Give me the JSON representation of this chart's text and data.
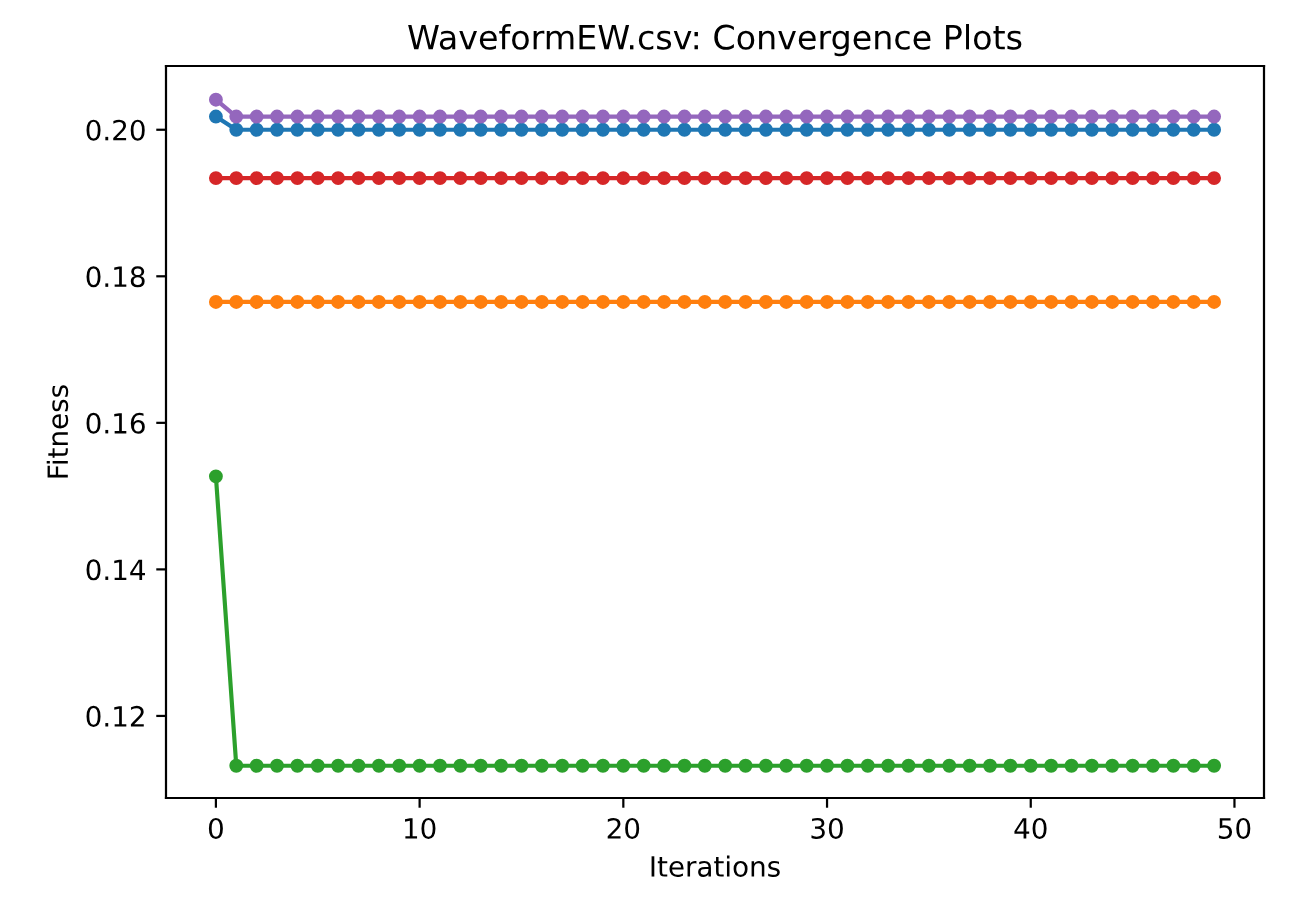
{
  "chart_data": {
    "type": "line",
    "title": "WaveformEW.csv: Convergence Plots",
    "xlabel": "Iterations",
    "ylabel": "Fitness",
    "x": [
      0,
      1,
      2,
      3,
      4,
      5,
      6,
      7,
      8,
      9,
      10,
      11,
      12,
      13,
      14,
      15,
      16,
      17,
      18,
      19,
      20,
      21,
      22,
      23,
      24,
      25,
      26,
      27,
      28,
      29,
      30,
      31,
      32,
      33,
      34,
      35,
      36,
      37,
      38,
      39,
      40,
      41,
      42,
      43,
      44,
      45,
      46,
      47,
      48,
      49
    ],
    "series": [
      {
        "color": "#1f77b4",
        "values": [
          0.2018,
          0.2,
          0.2,
          0.2,
          0.2,
          0.2,
          0.2,
          0.2,
          0.2,
          0.2,
          0.2,
          0.2,
          0.2,
          0.2,
          0.2,
          0.2,
          0.2,
          0.2,
          0.2,
          0.2,
          0.2,
          0.2,
          0.2,
          0.2,
          0.2,
          0.2,
          0.2,
          0.2,
          0.2,
          0.2,
          0.2,
          0.2,
          0.2,
          0.2,
          0.2,
          0.2,
          0.2,
          0.2,
          0.2,
          0.2,
          0.2,
          0.2,
          0.2,
          0.2,
          0.2,
          0.2,
          0.2,
          0.2,
          0.2,
          0.2
        ]
      },
      {
        "color": "#ff7f0e",
        "values": [
          0.1765,
          0.1765,
          0.1765,
          0.1765,
          0.1765,
          0.1765,
          0.1765,
          0.1765,
          0.1765,
          0.1765,
          0.1765,
          0.1765,
          0.1765,
          0.1765,
          0.1765,
          0.1765,
          0.1765,
          0.1765,
          0.1765,
          0.1765,
          0.1765,
          0.1765,
          0.1765,
          0.1765,
          0.1765,
          0.1765,
          0.1765,
          0.1765,
          0.1765,
          0.1765,
          0.1765,
          0.1765,
          0.1765,
          0.1765,
          0.1765,
          0.1765,
          0.1765,
          0.1765,
          0.1765,
          0.1765,
          0.1765,
          0.1765,
          0.1765,
          0.1765,
          0.1765,
          0.1765,
          0.1765,
          0.1765,
          0.1765,
          0.1765
        ]
      },
      {
        "color": "#2ca02c",
        "values": [
          0.1527,
          0.1132,
          0.1132,
          0.1132,
          0.1132,
          0.1132,
          0.1132,
          0.1132,
          0.1132,
          0.1132,
          0.1132,
          0.1132,
          0.1132,
          0.1132,
          0.1132,
          0.1132,
          0.1132,
          0.1132,
          0.1132,
          0.1132,
          0.1132,
          0.1132,
          0.1132,
          0.1132,
          0.1132,
          0.1132,
          0.1132,
          0.1132,
          0.1132,
          0.1132,
          0.1132,
          0.1132,
          0.1132,
          0.1132,
          0.1132,
          0.1132,
          0.1132,
          0.1132,
          0.1132,
          0.1132,
          0.1132,
          0.1132,
          0.1132,
          0.1132,
          0.1132,
          0.1132,
          0.1132,
          0.1132,
          0.1132,
          0.1132
        ]
      },
      {
        "color": "#d62728",
        "values": [
          0.1934,
          0.1934,
          0.1934,
          0.1934,
          0.1934,
          0.1934,
          0.1934,
          0.1934,
          0.1934,
          0.1934,
          0.1934,
          0.1934,
          0.1934,
          0.1934,
          0.1934,
          0.1934,
          0.1934,
          0.1934,
          0.1934,
          0.1934,
          0.1934,
          0.1934,
          0.1934,
          0.1934,
          0.1934,
          0.1934,
          0.1934,
          0.1934,
          0.1934,
          0.1934,
          0.1934,
          0.1934,
          0.1934,
          0.1934,
          0.1934,
          0.1934,
          0.1934,
          0.1934,
          0.1934,
          0.1934,
          0.1934,
          0.1934,
          0.1934,
          0.1934,
          0.1934,
          0.1934,
          0.1934,
          0.1934,
          0.1934,
          0.1934
        ]
      },
      {
        "color": "#9467bd",
        "values": [
          0.2041,
          0.2018,
          0.2018,
          0.2018,
          0.2018,
          0.2018,
          0.2018,
          0.2018,
          0.2018,
          0.2018,
          0.2018,
          0.2018,
          0.2018,
          0.2018,
          0.2018,
          0.2018,
          0.2018,
          0.2018,
          0.2018,
          0.2018,
          0.2018,
          0.2018,
          0.2018,
          0.2018,
          0.2018,
          0.2018,
          0.2018,
          0.2018,
          0.2018,
          0.2018,
          0.2018,
          0.2018,
          0.2018,
          0.2018,
          0.2018,
          0.2018,
          0.2018,
          0.2018,
          0.2018,
          0.2018,
          0.2018,
          0.2018,
          0.2018,
          0.2018,
          0.2018,
          0.2018,
          0.2018,
          0.2018,
          0.2018,
          0.2018
        ]
      }
    ],
    "xlim": [
      -2.45,
      51.45
    ],
    "ylim": [
      0.1088,
      0.2087
    ],
    "xticks": [
      0,
      10,
      20,
      30,
      40,
      50
    ],
    "yticks": [
      0.12,
      0.14,
      0.16,
      0.18,
      {
        "value": 0.2,
        "label": "0.20"
      }
    ],
    "marker": "circle",
    "line_style": "solid",
    "grid": false,
    "legend": false
  }
}
